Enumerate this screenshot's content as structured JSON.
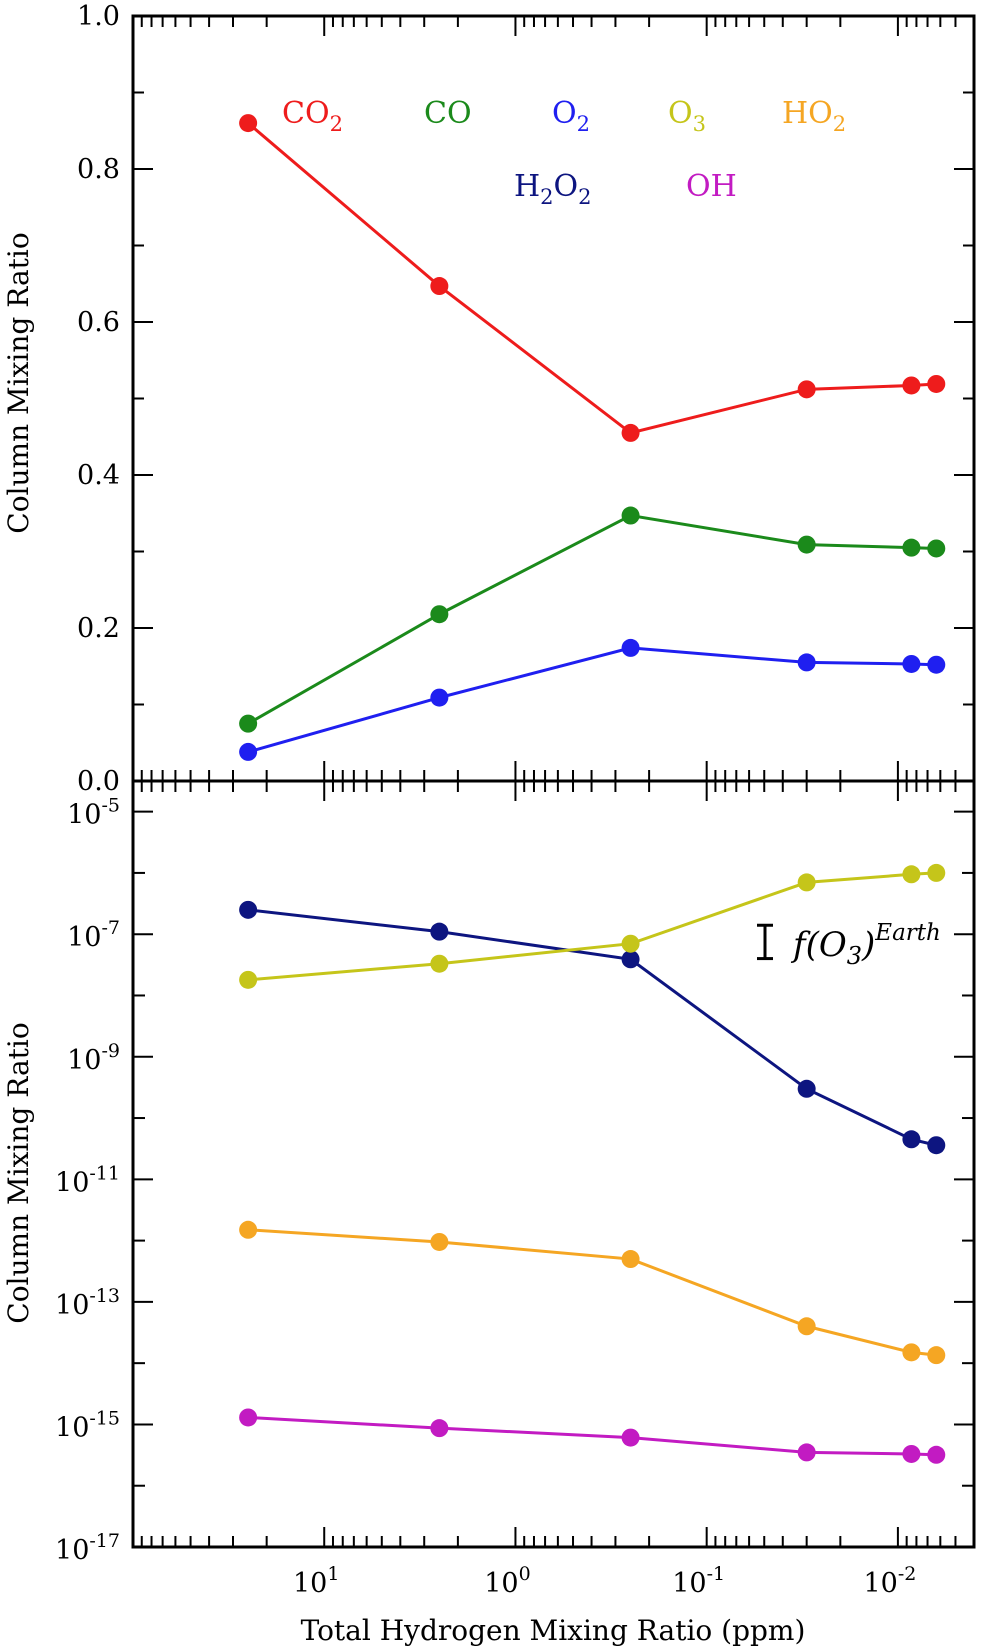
{
  "chart_data": {
    "type": "line",
    "xlabel": "Total Hydrogen Mixing Ratio (ppm)",
    "x": [
      25,
      2.5,
      0.25,
      0.03,
      0.0085,
      0.0063
    ],
    "xlim_note": "x axis reversed, log scale",
    "xlim": [
      100,
      0.004
    ],
    "x_tick_labels": [
      {
        "base": "10",
        "exp": "1"
      },
      {
        "base": "10",
        "exp": "0"
      },
      {
        "base": "10",
        "exp": "-1"
      },
      {
        "base": "10",
        "exp": "-2"
      }
    ],
    "top_panel": {
      "ylabel": "Column Mixing Ratio",
      "ylim": [
        0.0,
        1.0
      ],
      "y_tick_labels": [
        "0.0",
        "0.2",
        "0.4",
        "0.6",
        "0.8",
        "1.0"
      ],
      "series": [
        {
          "name": "CO2",
          "color": "#ee1c1c",
          "values": [
            0.86,
            0.647,
            0.455,
            0.512,
            0.517,
            0.519
          ]
        },
        {
          "name": "CO",
          "color": "#1b8a1b",
          "values": [
            0.075,
            0.218,
            0.347,
            0.309,
            0.305,
            0.304
          ]
        },
        {
          "name": "O2",
          "color": "#1f1ff0",
          "values": [
            0.038,
            0.109,
            0.174,
            0.155,
            0.153,
            0.152
          ]
        }
      ]
    },
    "bottom_panel": {
      "ylabel": "Column Mixing Ratio",
      "yscale": "log",
      "ylim_exp": [
        -17,
        -4.5
      ],
      "y_tick_labels": [
        {
          "base": "10",
          "exp": "-5"
        },
        {
          "base": "10",
          "exp": "-7"
        },
        {
          "base": "10",
          "exp": "-9"
        },
        {
          "base": "10",
          "exp": "-11"
        },
        {
          "base": "10",
          "exp": "-13"
        },
        {
          "base": "10",
          "exp": "-15"
        },
        {
          "base": "10",
          "exp": "-17"
        }
      ],
      "series": [
        {
          "name": "H2O2",
          "color": "#0d1580",
          "values": [
            2.5e-07,
            1.1e-07,
            3.9e-08,
            3e-10,
            4.5e-11,
            3.6e-11
          ]
        },
        {
          "name": "O3",
          "color": "#c5c51a",
          "values": [
            1.8e-08,
            3.3e-08,
            7e-08,
            7e-07,
            9.5e-07,
            1e-06
          ]
        },
        {
          "name": "HO2",
          "color": "#f5a623",
          "values": [
            1.5e-12,
            9.5e-13,
            5e-13,
            4e-14,
            1.5e-14,
            1.35e-14
          ]
        },
        {
          "name": "OH",
          "color": "#c21bc2",
          "values": [
            1.3e-15,
            8.7e-16,
            6.1e-16,
            3.5e-16,
            3.3e-16,
            3.2e-16
          ]
        }
      ],
      "annotation": {
        "text_main": "f(O",
        "text_sub": "3",
        "text_close": ")",
        "text_sup": "Earth",
        "range": [
          4e-08,
          1.4e-07
        ]
      }
    },
    "legend": [
      {
        "base": "CO",
        "sub": "2",
        "color": "#ee1c1c"
      },
      {
        "base": "CO",
        "sub": "",
        "color": "#1b8a1b"
      },
      {
        "base": "O",
        "sub": "2",
        "color": "#1f1ff0"
      },
      {
        "base": "O",
        "sub": "3",
        "color": "#c5c51a"
      },
      {
        "base": "HO",
        "sub": "2",
        "color": "#f5a623"
      },
      {
        "base": "H",
        "sub": "2",
        "base2": "O",
        "sub2": "2",
        "color": "#0d1580"
      },
      {
        "base": "OH",
        "sub": "",
        "color": "#c21bc2"
      }
    ]
  }
}
